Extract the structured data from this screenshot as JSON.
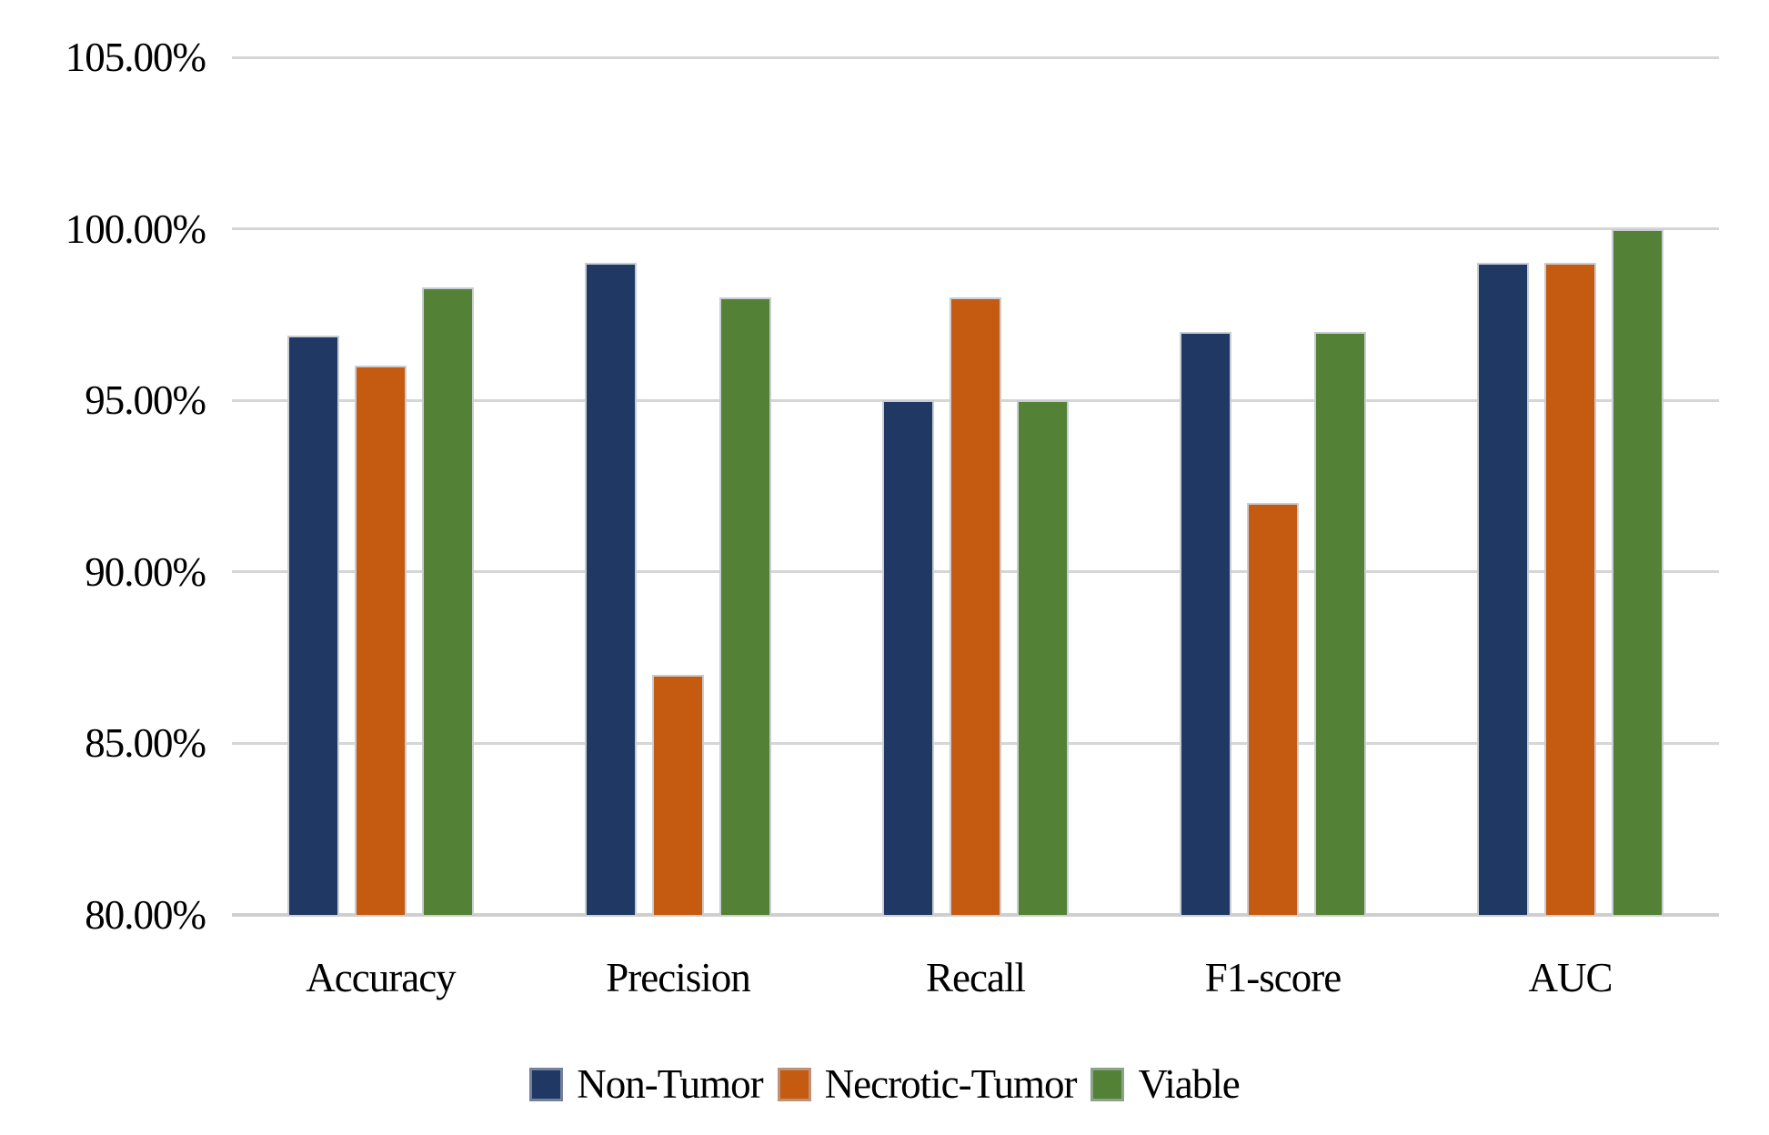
{
  "chart_data": {
    "type": "bar",
    "title": "",
    "categories": [
      "Accuracy",
      "Precision",
      "Recall",
      "F1-score",
      "AUC"
    ],
    "series": [
      {
        "name": "Non-Tumor",
        "color": "#1F3864",
        "values": [
          96.9,
          99.0,
          95.0,
          97.0,
          99.0
        ]
      },
      {
        "name": "Necrotic-Tumor",
        "color": "#C55A11",
        "values": [
          96.0,
          87.0,
          98.0,
          92.0,
          99.0
        ]
      },
      {
        "name": "Viable",
        "color": "#538135",
        "values": [
          98.3,
          98.0,
          95.0,
          97.0,
          100.0
        ]
      }
    ],
    "xlabel": "",
    "ylabel": "",
    "ylim": [
      80,
      105
    ],
    "y_ticks": [
      {
        "value": 105,
        "label": "105.00%"
      },
      {
        "value": 100,
        "label": "100.00%"
      },
      {
        "value": 95,
        "label": "95.00%"
      },
      {
        "value": 90,
        "label": "90.00%"
      },
      {
        "value": 85,
        "label": "85.00%"
      },
      {
        "value": 80,
        "label": "80.00%"
      }
    ],
    "grid": true,
    "legend_position": "bottom",
    "colors": {
      "gridline": "#D6D6D6",
      "axis_line": "#CFCFCF",
      "background": "#FFFFFF",
      "text": "#000000"
    }
  }
}
